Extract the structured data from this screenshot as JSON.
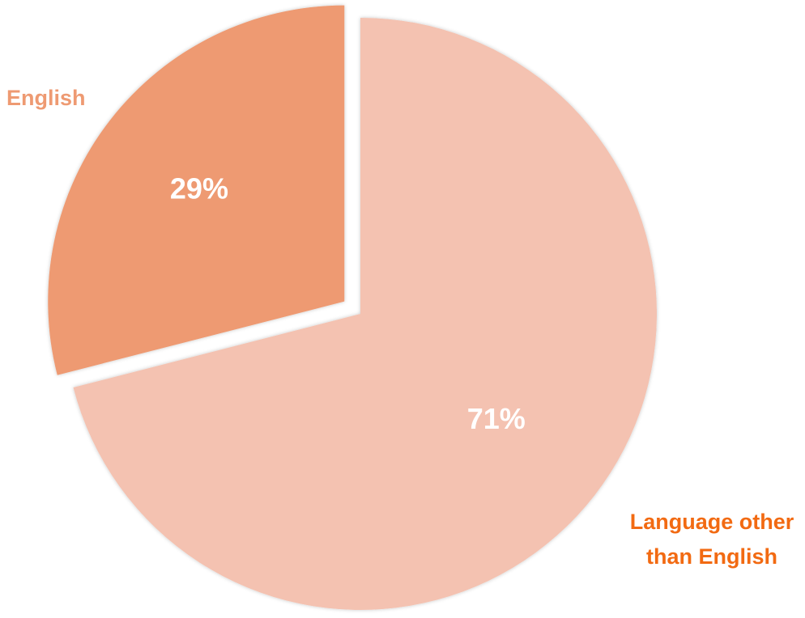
{
  "chart_data": {
    "type": "pie",
    "categories": [
      "English",
      "Language other than English"
    ],
    "values": [
      29,
      71
    ],
    "value_labels": [
      "29%",
      "71%"
    ],
    "slice_colors": [
      "#ee9a72",
      "#f4c2b1"
    ],
    "category_label_colors": [
      "#ee9a72",
      "#f26a12"
    ],
    "exploded_slice": "English",
    "start_angle": "12 o'clock",
    "direction": "counterclockwise for English slice"
  }
}
